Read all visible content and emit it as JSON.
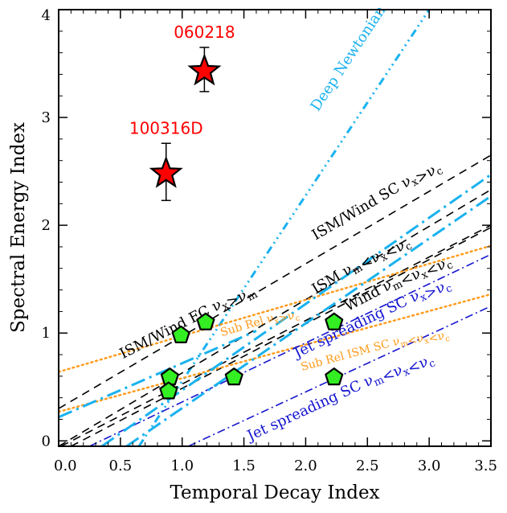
{
  "chart_data": {
    "type": "scatter",
    "xlabel": "Temporal Decay Index",
    "ylabel": "Spectral Energy Index",
    "xlim": [
      0.0,
      3.5
    ],
    "ylim": [
      -0.05,
      4.0
    ],
    "xticks": [
      "0.0",
      "0.5",
      "1.0",
      "1.5",
      "2.0",
      "2.5",
      "3.0",
      "3.5"
    ],
    "yticks": [
      "0",
      "1",
      "2",
      "3",
      "4"
    ],
    "grid": false,
    "highlighted_points": [
      {
        "label": "060218",
        "x": 1.18,
        "y": 3.43,
        "yerr": [
          0.19,
          0.22
        ],
        "color": "#ff0000",
        "marker": "star"
      },
      {
        "label": "100316D",
        "x": 0.87,
        "y": 2.48,
        "yerr": [
          0.25,
          0.28
        ],
        "color": "#ff0000",
        "marker": "star"
      }
    ],
    "points": [
      {
        "x": 0.99,
        "y": 0.98
      },
      {
        "x": 1.19,
        "y": 1.1
      },
      {
        "x": 2.23,
        "y": 1.1
      },
      {
        "x": 0.9,
        "y": 0.59
      },
      {
        "x": 1.42,
        "y": 0.59
      },
      {
        "x": 2.23,
        "y": 0.59
      },
      {
        "x": 0.89,
        "y": 0.46
      }
    ],
    "point_style": {
      "marker": "pentagon",
      "fill": "#33ee22"
    },
    "closure_lines": [
      {
        "label_main": "Deep Newtonian",
        "label_sub": "",
        "color": "#19b2ef",
        "dash": "10,5,2,5,2,5,2,5",
        "x1": 0.65,
        "y1": -0.05,
        "x2": 3.0,
        "y2": 4.0,
        "label_x": 2.1,
        "label_y": 3.05,
        "font": 18
      },
      {
        "label_main": "ISM/Wind SC ",
        "label_sub": "ν_x>ν_c",
        "color": "#000000",
        "dash": "10,7",
        "x1": 0.0,
        "y1": 0.3,
        "x2": 3.5,
        "y2": 2.65,
        "label_x": 2.08,
        "label_y": 1.86,
        "font": 18
      },
      {
        "label_main": "ISM ",
        "label_sub": "ν_m<ν_x<ν_c",
        "color": "#000000",
        "dash": "10,7",
        "x1": 0.0,
        "y1": -0.05,
        "x2": 3.5,
        "y2": 2.33,
        "label_x": 2.08,
        "label_y": 1.36,
        "font": 18
      },
      {
        "label_main": "ISM/Wind FC ",
        "label_sub": "ν_x>ν_m",
        "color": "#000000",
        "dash": "10,7",
        "x1": 0.02,
        "y1": -0.05,
        "x2": 3.5,
        "y2": 2.0,
        "label_x": 0.52,
        "label_y": 0.76,
        "font": 18
      },
      {
        "label_main": "Wind ",
        "label_sub": "ν_m<ν_x<ν_c",
        "color": "#000000",
        "dash": "10,7",
        "x1": 0.1,
        "y1": -0.05,
        "x2": 3.5,
        "y2": 1.98,
        "label_x": 2.34,
        "label_y": 1.2,
        "font": 18
      },
      {
        "label_main": "Sub Rel ",
        "label_sub": "ν_x>ν_c",
        "color": "#ff9a1a",
        "dash": "2,4",
        "x1": 0.0,
        "y1": 0.64,
        "x2": 3.5,
        "y2": 1.81,
        "label_x": 1.32,
        "label_y": 0.97,
        "font": 14
      },
      {
        "label_main": "Sub Rel ISM SC ",
        "label_sub": "ν_m<ν_x<ν_c",
        "color": "#ff9a1a",
        "dash": "2,4",
        "x1": 0.0,
        "y1": 0.27,
        "x2": 3.5,
        "y2": 1.36,
        "label_x": 1.97,
        "label_y": 0.65,
        "font": 14
      },
      {
        "label_main": "Jet spreading SC ",
        "label_sub": "ν_x>ν_c",
        "color": "#1414d0",
        "dash": "10,4,2,4",
        "x1": 0.25,
        "y1": -0.05,
        "x2": 3.5,
        "y2": 1.73,
        "label_x": 1.93,
        "label_y": 0.77,
        "font": 18
      },
      {
        "label_main": "Jet spreading SC ",
        "label_sub": "ν_m<ν_x<ν_c",
        "color": "#1414d0",
        "dash": "10,4,2,4",
        "x1": 1.05,
        "y1": -0.05,
        "x2": 3.5,
        "y2": 1.25,
        "label_x": 1.55,
        "label_y": 0.0,
        "font": 18
      },
      {
        "label_main": "",
        "label_sub": "",
        "color": "#19b2ef",
        "dash": "18,6,3,6",
        "x1": 0.35,
        "y1": -0.05,
        "x2": 3.5,
        "y2": 2.47,
        "label_x": 0,
        "label_y": 0,
        "font": 18
      },
      {
        "label_main": "",
        "label_sub": "",
        "color": "#19b2ef",
        "dash": "18,6,3,6",
        "x1": 0.55,
        "y1": -0.05,
        "x2": 3.5,
        "y2": 2.27,
        "label_x": 0,
        "label_y": 0,
        "font": 18
      },
      {
        "label_main": "",
        "label_sub": "",
        "color": "#19b2ef",
        "dash": "18,6,3,6",
        "x1": 0.0,
        "y1": 0.22,
        "x2": 1.6,
        "y2": 1.02,
        "label_x": 0,
        "label_y": 0,
        "font": 18
      }
    ]
  }
}
